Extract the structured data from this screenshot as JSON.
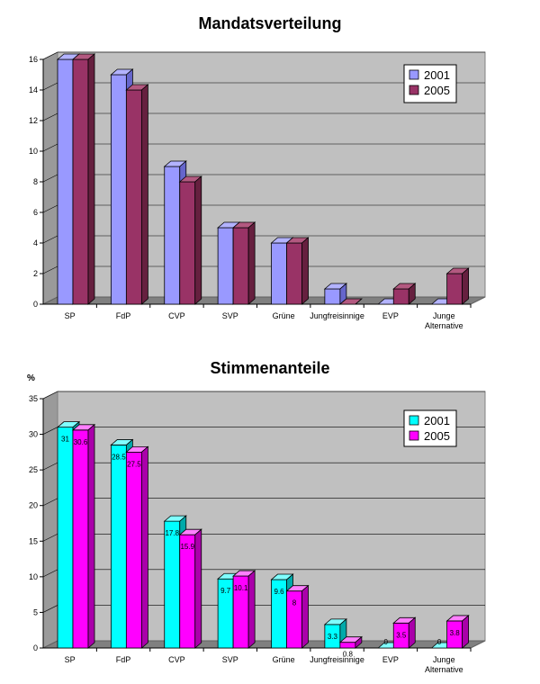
{
  "chart_data": [
    {
      "type": "bar",
      "title": "Mandatsverteilung",
      "categories": [
        "SP",
        "FdP",
        "CVP",
        "SVP",
        "Grüne",
        "Jungfreisinnige",
        "EVP",
        "Junge Alternative"
      ],
      "series": [
        {
          "name": "2001",
          "values": [
            16,
            15,
            9,
            5,
            4,
            1,
            0,
            0
          ],
          "color": "#9999ff",
          "side": "#6666cc",
          "top": "#b3b3ff"
        },
        {
          "name": "2005",
          "values": [
            16,
            14,
            8,
            5,
            4,
            0,
            1,
            2
          ],
          "color": "#993366",
          "side": "#66203f",
          "top": "#b35980"
        }
      ],
      "ylim": [
        0,
        16
      ],
      "yticks": [
        "0",
        "2",
        "4",
        "6",
        "8",
        "10",
        "12",
        "14",
        "16"
      ],
      "ylabel": "",
      "xlabel": "",
      "show_data_labels": false,
      "grid": true,
      "legend": "top-right"
    },
    {
      "type": "bar",
      "title": "Stimmenanteile",
      "categories": [
        "SP",
        "FdP",
        "CVP",
        "SVP",
        "Grüne",
        "Jungfreisinnige",
        "EVP",
        "Junge Alternative"
      ],
      "series": [
        {
          "name": "2001",
          "values": [
            31,
            28.5,
            17.8,
            9.7,
            9.6,
            3.3,
            0,
            0
          ],
          "color": "#00ffff",
          "side": "#00aaaa",
          "top": "#80ffff"
        },
        {
          "name": "2005",
          "values": [
            30.6,
            27.5,
            15.9,
            10.1,
            8,
            0.8,
            3.5,
            3.8
          ],
          "color": "#ff00ff",
          "side": "#aa00aa",
          "top": "#ff80ff"
        }
      ],
      "ylim": [
        0,
        35
      ],
      "yticks": [
        "0",
        "5",
        "10",
        "15",
        "20",
        "25",
        "30",
        "35"
      ],
      "ylabel": "%",
      "xlabel": "",
      "show_data_labels": true,
      "grid": true,
      "legend": "top-right"
    }
  ]
}
